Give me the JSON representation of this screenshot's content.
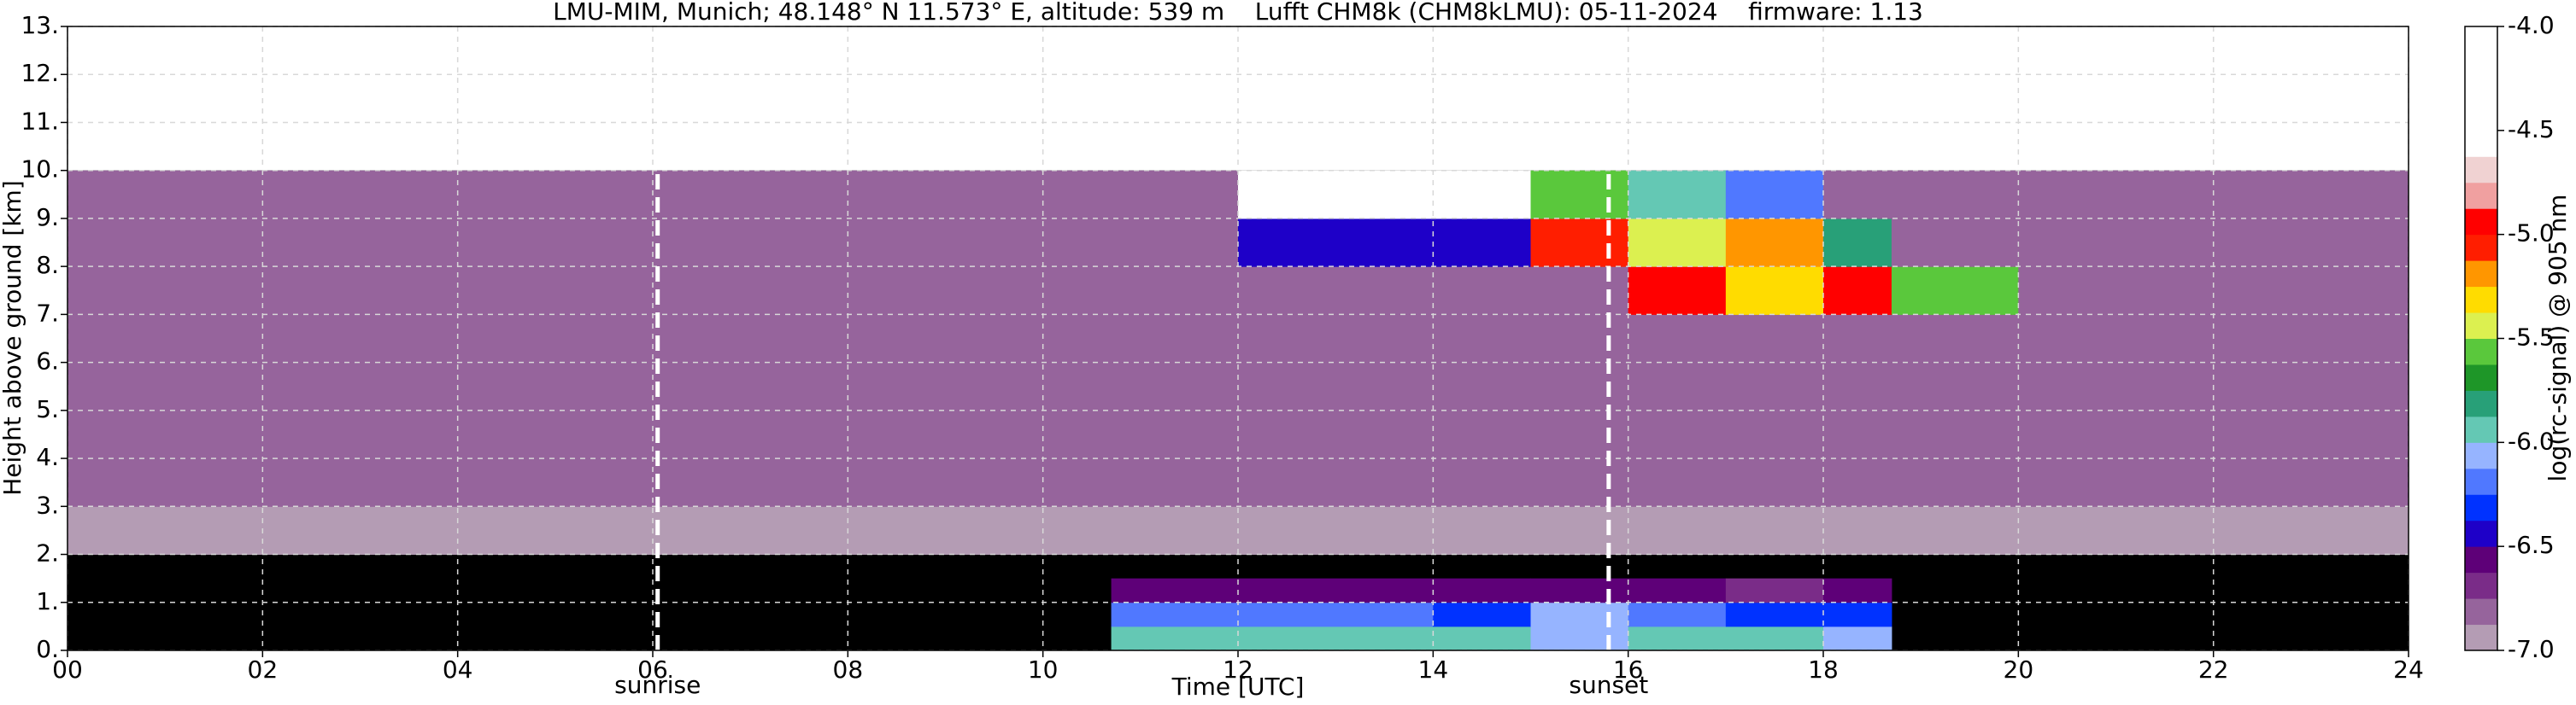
{
  "chart_data": {
    "type": "heatmap",
    "title": "LMU-MIM, Munich; 48.148° N 11.573° E, altitude: 539 m    Lufft CHM8k (CHM8kLMU): 05-11-2024    firmware: 1.13",
    "xlabel": "Time [UTC]",
    "ylabel": "Height above ground [km]",
    "xlim": [
      0,
      24
    ],
    "ylim": [
      0,
      13
    ],
    "xticks": [
      {
        "value": 0,
        "label": "00"
      },
      {
        "value": 2,
        "label": "02"
      },
      {
        "value": 4,
        "label": "04"
      },
      {
        "value": 6,
        "label": "06"
      },
      {
        "value": 8,
        "label": "08"
      },
      10,
      12,
      14,
      16,
      18,
      20,
      22,
      24
    ],
    "yticks": [
      {
        "value": 0,
        "label": "0."
      },
      {
        "value": 1,
        "label": "1."
      },
      {
        "value": 2,
        "label": "2."
      },
      {
        "value": 3,
        "label": "3."
      },
      {
        "value": 4,
        "label": "4."
      },
      {
        "value": 5,
        "label": "5."
      },
      {
        "value": 6,
        "label": "6."
      },
      {
        "value": 7,
        "label": "7."
      },
      {
        "value": 8,
        "label": "8."
      },
      {
        "value": 9,
        "label": "9."
      },
      {
        "value": 10,
        "label": "10."
      },
      {
        "value": 11,
        "label": "11."
      },
      {
        "value": 12,
        "label": "12."
      },
      {
        "value": 13,
        "label": "13."
      }
    ],
    "grid": true,
    "x": [
      0,
      2,
      4,
      6,
      8,
      10,
      10.7,
      12,
      14,
      15,
      16,
      17,
      18,
      18.7,
      20,
      22,
      24
    ],
    "y": [
      0,
      0.5,
      1,
      1.5,
      2,
      3,
      4,
      5,
      6,
      7,
      8,
      9,
      10
    ],
    "z": [
      [
        null,
        null,
        null,
        null,
        null,
        null,
        -6.0,
        -6.0,
        -6.0,
        -6.1,
        -6.0,
        -6.0,
        -6.1,
        null,
        null,
        null
      ],
      [
        null,
        null,
        null,
        null,
        null,
        null,
        -6.2,
        -6.2,
        -6.3,
        -6.1,
        -6.2,
        -6.3,
        -6.3,
        null,
        null,
        null
      ],
      [
        null,
        null,
        null,
        null,
        null,
        null,
        -6.6,
        -6.6,
        -6.6,
        -6.6,
        -6.6,
        -6.7,
        -6.6,
        null,
        null,
        null
      ],
      [
        null,
        null,
        null,
        null,
        null,
        null,
        null,
        null,
        null,
        null,
        null,
        null,
        null,
        null,
        null,
        null
      ],
      [
        -6.9,
        -6.9,
        -6.9,
        -6.9,
        -6.9,
        -6.9,
        -6.9,
        -6.9,
        -6.9,
        -6.9,
        -6.9,
        -6.9,
        -6.9,
        -6.9,
        -6.9,
        -6.9
      ],
      [
        -6.8,
        -6.8,
        -6.8,
        -6.8,
        -6.8,
        -6.8,
        -6.8,
        -6.8,
        -6.8,
        -6.8,
        -6.8,
        -6.8,
        -6.8,
        -6.8,
        -6.8,
        -6.8
      ],
      [
        -6.8,
        -6.8,
        -6.8,
        -6.8,
        -6.8,
        -6.8,
        -6.8,
        -6.8,
        -6.8,
        -6.8,
        -6.8,
        -6.8,
        -6.8,
        -6.8,
        -6.8,
        -6.8
      ],
      [
        -6.8,
        -6.8,
        -6.8,
        -6.8,
        -6.8,
        -6.8,
        -6.8,
        -6.8,
        -6.8,
        -6.8,
        -6.8,
        -6.8,
        -6.8,
        -6.8,
        -6.8,
        -6.8
      ],
      [
        -6.8,
        -6.8,
        -6.8,
        -6.8,
        -6.8,
        -6.8,
        -6.8,
        -6.8,
        -6.8,
        -6.8,
        -6.8,
        -6.8,
        -6.8,
        -6.8,
        -6.8,
        -6.8
      ],
      [
        -6.8,
        -6.8,
        -6.8,
        -6.8,
        -6.8,
        -6.8,
        -6.8,
        -6.8,
        -6.8,
        -6.8,
        -5.0,
        -5.3,
        -5.0,
        -5.6,
        -6.8,
        -6.8
      ],
      [
        -6.8,
        -6.8,
        -6.8,
        -6.8,
        -6.8,
        -6.8,
        -6.8,
        -6.5,
        -6.4,
        -5.1,
        -5.4,
        -5.2,
        -5.8,
        -6.8,
        -6.8,
        -6.8
      ],
      [
        -6.8,
        -6.8,
        -6.8,
        -6.8,
        -6.8,
        -6.8,
        -6.8,
        -4.5,
        -4.6,
        -5.6,
        -6.0,
        -6.2,
        -6.8,
        -6.8,
        -6.8,
        -6.8
      ]
    ],
    "annotations": [
      {
        "x": 6.05,
        "text": "sunrise"
      },
      {
        "x": 15.8,
        "text": "sunset"
      }
    ],
    "colorbar": {
      "label": "log(rc-signal) @ 905 nm",
      "levels": [
        -7.0,
        -6.875,
        -6.75,
        -6.625,
        -6.5,
        -6.375,
        -6.25,
        -6.125,
        -6.0,
        -5.875,
        -5.75,
        -5.625,
        -5.5,
        -5.375,
        -5.25,
        -5.125,
        -5.0,
        -4.875,
        -4.75,
        -4.625,
        -4.5,
        -4.375,
        -4.25,
        -4.125,
        -4.0
      ],
      "colors": [
        "#b49cb4",
        "#96649c",
        "#7a2c88",
        "#5e0078",
        "#1e00c8",
        "#0032ff",
        "#5078ff",
        "#96b4ff",
        "#64c8b4",
        "#28a078",
        "#1e9628",
        "#5ac83c",
        "#dcf050",
        "#ffdc00",
        "#ff9600",
        "#ff1e00",
        "#ff0000",
        "#f0a0a0",
        "#f0d2d2",
        "#ffffff",
        "#ffffff",
        "#ffffff",
        "#ffffff",
        "#ffffff"
      ],
      "ticks": [
        {
          "value": -7.0,
          "label": "-7.0"
        },
        {
          "value": -6.5,
          "label": "-6.5"
        },
        {
          "value": -6.0,
          "label": "-6.0"
        },
        {
          "value": -5.5,
          "label": "-5.5"
        },
        {
          "value": -5.0,
          "label": "-5.0"
        },
        {
          "value": -4.5,
          "label": "-4.5"
        },
        {
          "value": -4.0,
          "label": "-4.0"
        }
      ]
    }
  }
}
